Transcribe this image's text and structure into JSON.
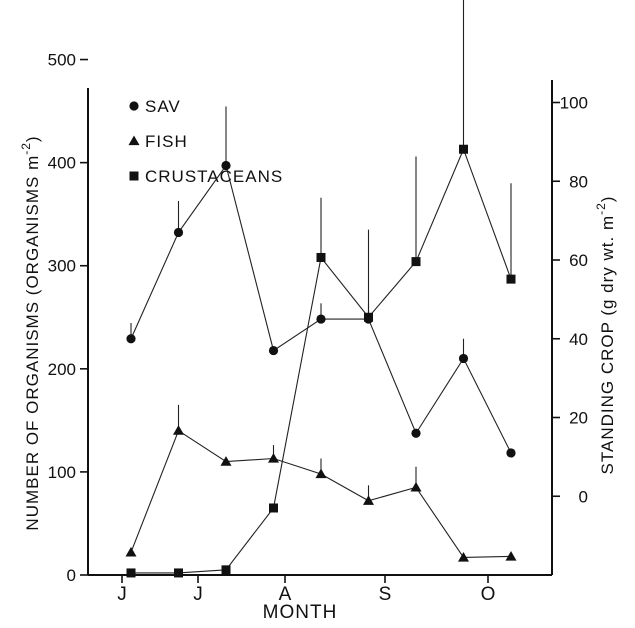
{
  "chart_data": {
    "type": "line",
    "xlabel": "MONTH",
    "x_tick_labels": [
      "J",
      "J",
      "A",
      "S",
      "O"
    ],
    "left_axis": {
      "label": "NUMBER OF ORGANISMS (ORGANISMS m",
      "label_sup": "-2",
      "label_close": ")",
      "ylim": [
        0,
        550
      ],
      "ticks": [
        0,
        100,
        200,
        300,
        400,
        500
      ]
    },
    "right_axis": {
      "label": "STANDING CROP (g dry wt. m",
      "label_sup": "-2",
      "label_close": ")",
      "ylim": [
        -20,
        124
      ],
      "ticks": [
        0,
        20,
        40,
        60,
        80,
        100
      ]
    },
    "x": [
      1,
      2,
      3,
      4,
      5,
      6,
      7,
      8,
      9
    ],
    "series": [
      {
        "name": "SAV",
        "marker": "circle",
        "axis": "right",
        "values": [
          40,
          67,
          84,
          37,
          45,
          45,
          16,
          35,
          11
        ],
        "errors": [
          4,
          8,
          15,
          0,
          4,
          4,
          0,
          5,
          0
        ]
      },
      {
        "name": "FISH",
        "marker": "triangle",
        "axis": "left",
        "values": [
          22,
          140,
          110,
          113,
          98,
          72,
          85,
          17,
          18
        ],
        "errors": [
          0,
          25,
          0,
          13,
          15,
          15,
          20,
          0,
          0
        ]
      },
      {
        "name": "CRUSTACEANS",
        "marker": "square",
        "axis": "left",
        "values": [
          2,
          2,
          5,
          65,
          308,
          250,
          304,
          413,
          287
        ],
        "errors": [
          0,
          0,
          0,
          0,
          58,
          85,
          102,
          197,
          93
        ]
      }
    ],
    "legend_position": "top-left",
    "grid": false
  }
}
